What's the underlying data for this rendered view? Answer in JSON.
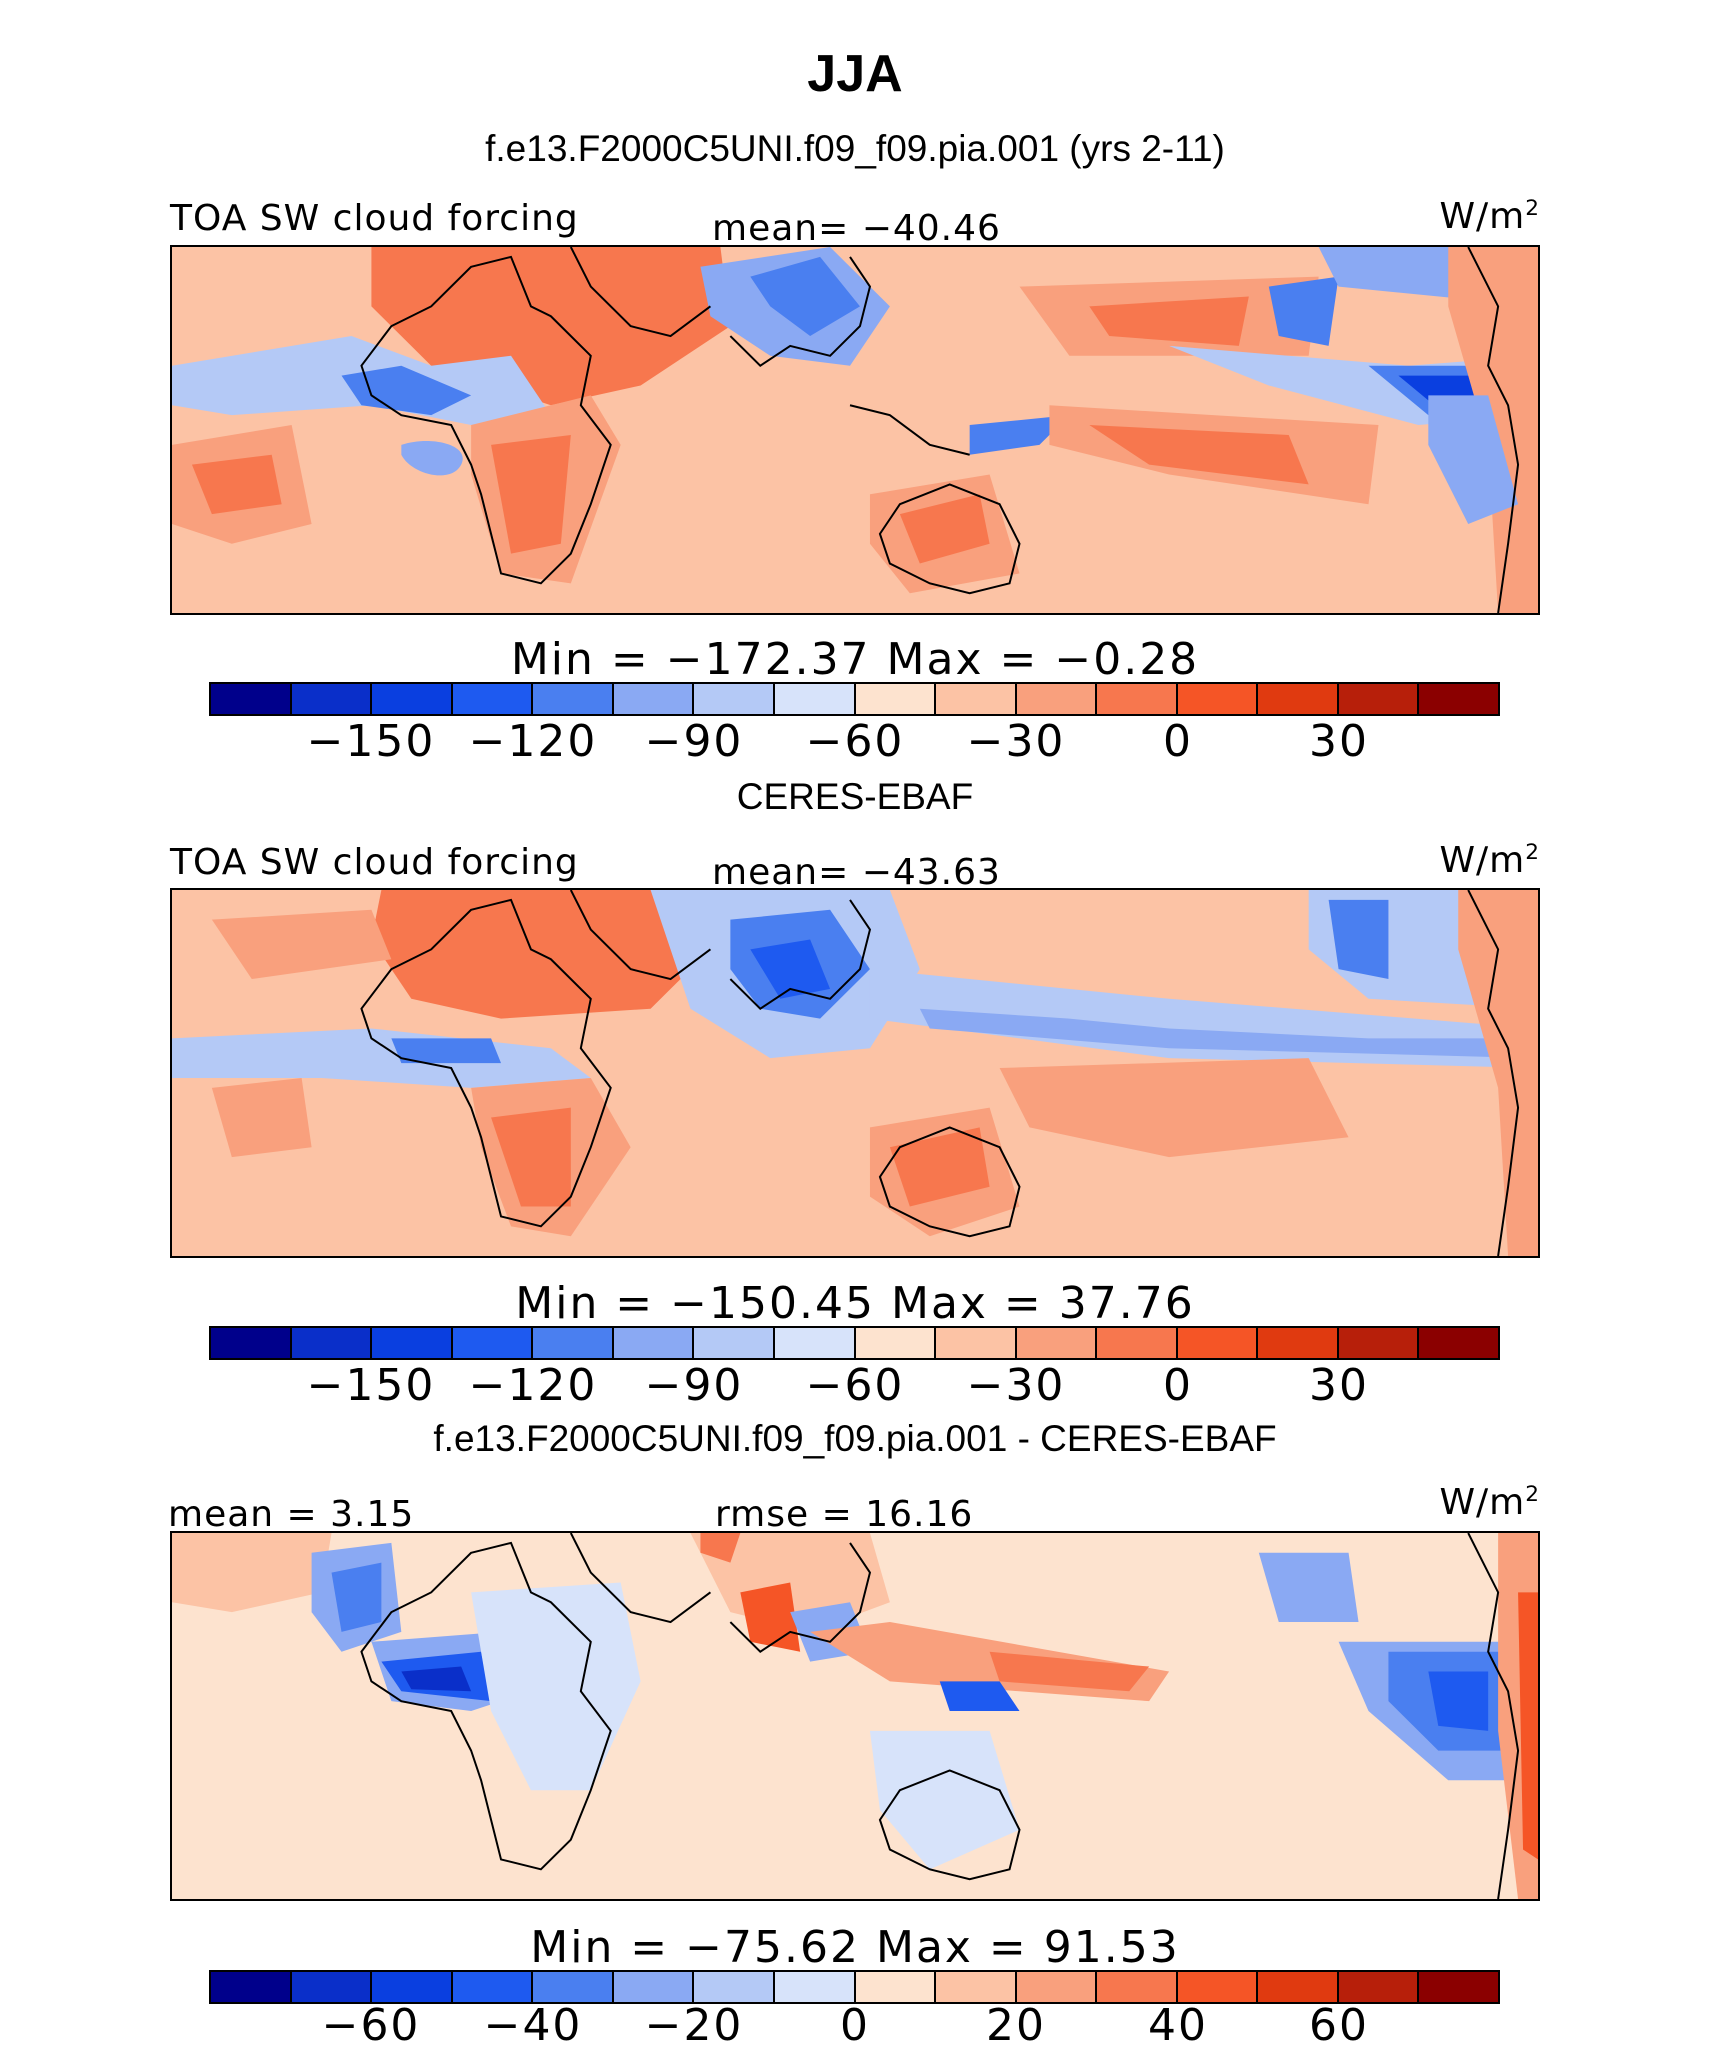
{
  "title": "JJA",
  "panels": [
    {
      "heading": "f.e13.F2000C5UNI.f09_f09.pia.001 (yrs 2-11)",
      "left_label": "TOA SW cloud forcing",
      "center_label": "mean= −40.46",
      "units": "W/m",
      "units_exp": "2",
      "stats": "Min = −172.37 Max =   −0.28",
      "colorbar_ticks": [
        "−150",
        "−120",
        "−90",
        "−60",
        "−30",
        "0",
        "30"
      ]
    },
    {
      "heading": "CERES-EBAF",
      "left_label": "TOA SW cloud forcing",
      "center_label": "mean= −43.63",
      "units": "W/m",
      "units_exp": "2",
      "stats": "Min = −150.45 Max =   37.76",
      "colorbar_ticks": [
        "−150",
        "−120",
        "−90",
        "−60",
        "−30",
        "0",
        "30"
      ]
    },
    {
      "heading": "f.e13.F2000C5UNI.f09_f09.pia.001 - CERES-EBAF",
      "left_label": "mean =   3.15",
      "center_label": "rmse =  16.16",
      "units": "W/m",
      "units_exp": "2",
      "stats": "Min = −75.62 Max =  91.53",
      "colorbar_ticks": [
        "−60",
        "−40",
        "−20",
        "0",
        "20",
        "40",
        "60"
      ]
    }
  ],
  "colors": {
    "palette": [
      "#00008b",
      "#0a2fc9",
      "#0a3fe0",
      "#1e5af0",
      "#4a7ff0",
      "#8aa9f3",
      "#b4c9f6",
      "#d7e3fa",
      "#fde3cf",
      "#fcc3a5",
      "#f9a07d",
      "#f7774e",
      "#f55526",
      "#e03a10",
      "#b71f0a",
      "#8b0000"
    ]
  }
}
